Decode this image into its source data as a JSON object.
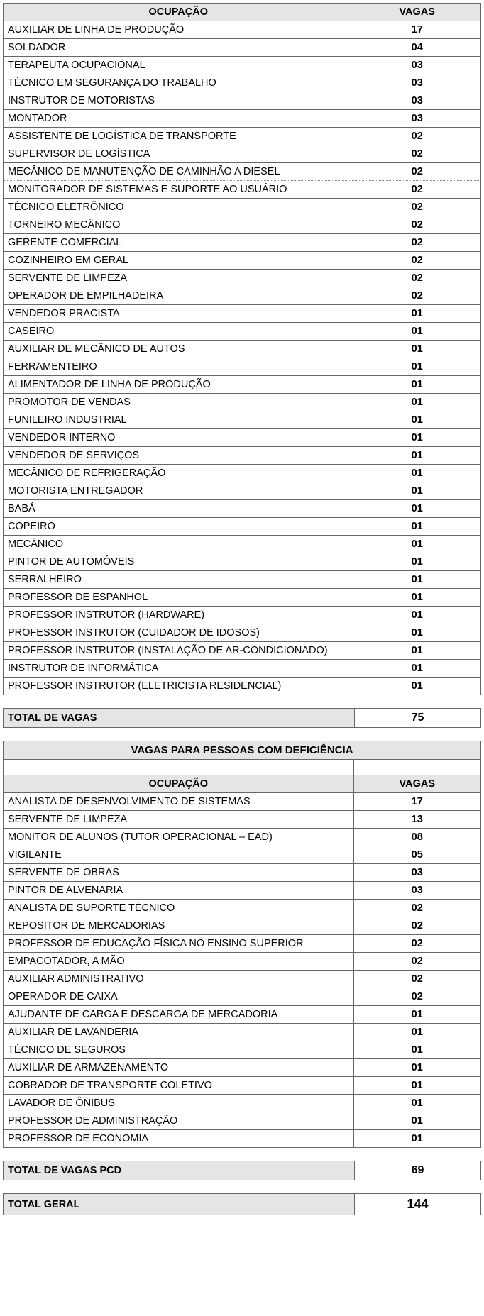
{
  "table1": {
    "header_occupation": "OCUPAÇÃO",
    "header_vagas": "VAGAS",
    "rows": [
      {
        "name": "AUXILIAR DE LINHA DE PRODUÇÃO",
        "vagas": "17"
      },
      {
        "name": "SOLDADOR",
        "vagas": "04"
      },
      {
        "name": "TERAPEUTA OCUPACIONAL",
        "vagas": "03"
      },
      {
        "name": "TÉCNICO EM SEGURANÇA DO TRABALHO",
        "vagas": "03"
      },
      {
        "name": "INSTRUTOR DE MOTORISTAS",
        "vagas": "03"
      },
      {
        "name": "MONTADOR",
        "vagas": "03"
      },
      {
        "name": "ASSISTENTE DE LOGÍSTICA DE TRANSPORTE",
        "vagas": "02"
      },
      {
        "name": "SUPERVISOR DE LOGÍSTICA",
        "vagas": "02"
      },
      {
        "name": "MECÂNICO DE MANUTENÇÃO DE CAMINHÃO A DIESEL",
        "vagas": "02"
      },
      {
        "name": "MONITORADOR DE SISTEMAS E SUPORTE AO USUÁRIO",
        "vagas": "02"
      },
      {
        "name": "TÉCNICO ELETRÔNICO",
        "vagas": "02"
      },
      {
        "name": "TORNEIRO MECÂNICO",
        "vagas": "02"
      },
      {
        "name": "GERENTE COMERCIAL",
        "vagas": "02"
      },
      {
        "name": "COZINHEIRO EM GERAL",
        "vagas": "02"
      },
      {
        "name": "SERVENTE DE LIMPEZA",
        "vagas": "02"
      },
      {
        "name": "OPERADOR DE EMPILHADEIRA",
        "vagas": "02"
      },
      {
        "name": "VENDEDOR PRACISTA",
        "vagas": "01"
      },
      {
        "name": "CASEIRO",
        "vagas": "01"
      },
      {
        "name": "AUXILIAR DE MECÂNICO DE AUTOS",
        "vagas": "01"
      },
      {
        "name": "FERRAMENTEIRO",
        "vagas": "01"
      },
      {
        "name": "ALIMENTADOR DE LINHA DE PRODUÇÃO",
        "vagas": "01"
      },
      {
        "name": "PROMOTOR DE VENDAS",
        "vagas": "01"
      },
      {
        "name": "FUNILEIRO INDUSTRIAL",
        "vagas": "01"
      },
      {
        "name": "VENDEDOR INTERNO",
        "vagas": "01"
      },
      {
        "name": "VENDEDOR DE SERVIÇOS",
        "vagas": "01"
      },
      {
        "name": "MECÂNICO DE REFRIGERAÇÃO",
        "vagas": "01"
      },
      {
        "name": "MOTORISTA ENTREGADOR",
        "vagas": "01"
      },
      {
        "name": "BABÁ",
        "vagas": "01"
      },
      {
        "name": "COPEIRO",
        "vagas": "01"
      },
      {
        "name": "MECÂNICO",
        "vagas": "01"
      },
      {
        "name": "PINTOR DE AUTOMÓVEIS",
        "vagas": "01"
      },
      {
        "name": "SERRALHEIRO",
        "vagas": "01"
      },
      {
        "name": "PROFESSOR DE ESPANHOL",
        "vagas": "01"
      },
      {
        "name": "PROFESSOR INSTRUTOR (HARDWARE)",
        "vagas": "01"
      },
      {
        "name": "PROFESSOR INSTRUTOR (CUIDADOR DE IDOSOS)",
        "vagas": "01"
      },
      {
        "name": "PROFESSOR INSTRUTOR  (INSTALAÇÃO DE AR-CONDICIONADO)",
        "vagas": "01"
      },
      {
        "name": "INSTRUTOR DE INFORMÁTICA",
        "vagas": "01"
      },
      {
        "name": "PROFESSOR INSTRUTOR (ELETRICISTA RESIDENCIAL)",
        "vagas": "01"
      }
    ],
    "total_label": "TOTAL DE VAGAS",
    "total_value": "75"
  },
  "table2": {
    "section_title": "VAGAS PARA PESSOAS COM DEFICIÊNCIA",
    "header_occupation": "OCUPAÇÃO",
    "header_vagas": "VAGAS",
    "rows": [
      {
        "name": "ANALISTA DE DESENVOLVIMENTO DE SISTEMAS",
        "vagas": "17"
      },
      {
        "name": "SERVENTE DE LIMPEZA",
        "vagas": "13"
      },
      {
        "name": "MONITOR DE ALUNOS (TUTOR OPERACIONAL – EAD)",
        "vagas": "08"
      },
      {
        "name": "VIGILANTE",
        "vagas": "05"
      },
      {
        "name": "SERVENTE DE OBRAS",
        "vagas": "03"
      },
      {
        "name": "PINTOR DE ALVENARIA",
        "vagas": "03"
      },
      {
        "name": "ANALISTA DE SUPORTE TÉCNICO",
        "vagas": "02"
      },
      {
        "name": "REPOSITOR DE MERCADORIAS",
        "vagas": "02"
      },
      {
        "name": "PROFESSOR DE EDUCAÇÃO FÍSICA NO ENSINO SUPERIOR",
        "vagas": "02"
      },
      {
        "name": "EMPACOTADOR, A MÃO",
        "vagas": "02"
      },
      {
        "name": "AUXILIAR ADMINISTRATIVO",
        "vagas": "02"
      },
      {
        "name": "OPERADOR DE CAIXA",
        "vagas": "02"
      },
      {
        "name": "AJUDANTE DE CARGA E DESCARGA DE MERCADORIA",
        "vagas": "01"
      },
      {
        "name": "AUXILIAR DE LAVANDERIA",
        "vagas": "01"
      },
      {
        "name": "TÉCNICO DE SEGUROS",
        "vagas": "01"
      },
      {
        "name": "AUXILIAR DE ARMAZENAMENTO",
        "vagas": "01"
      },
      {
        "name": "COBRADOR DE TRANSPORTE COLETIVO",
        "vagas": "01"
      },
      {
        "name": "LAVADOR DE ÔNIBUS",
        "vagas": "01"
      },
      {
        "name": "PROFESSOR DE ADMINISTRAÇÃO",
        "vagas": "01"
      },
      {
        "name": "PROFESSOR DE ECONOMIA",
        "vagas": "01"
      }
    ],
    "total_label": "TOTAL DE VAGAS PCD",
    "total_value": "69"
  },
  "grand_total": {
    "label": "TOTAL GERAL",
    "value": "144"
  },
  "colors": {
    "header_bg": "#e5e5e5",
    "border": "#666666",
    "text": "#000000",
    "background": "#ffffff"
  }
}
